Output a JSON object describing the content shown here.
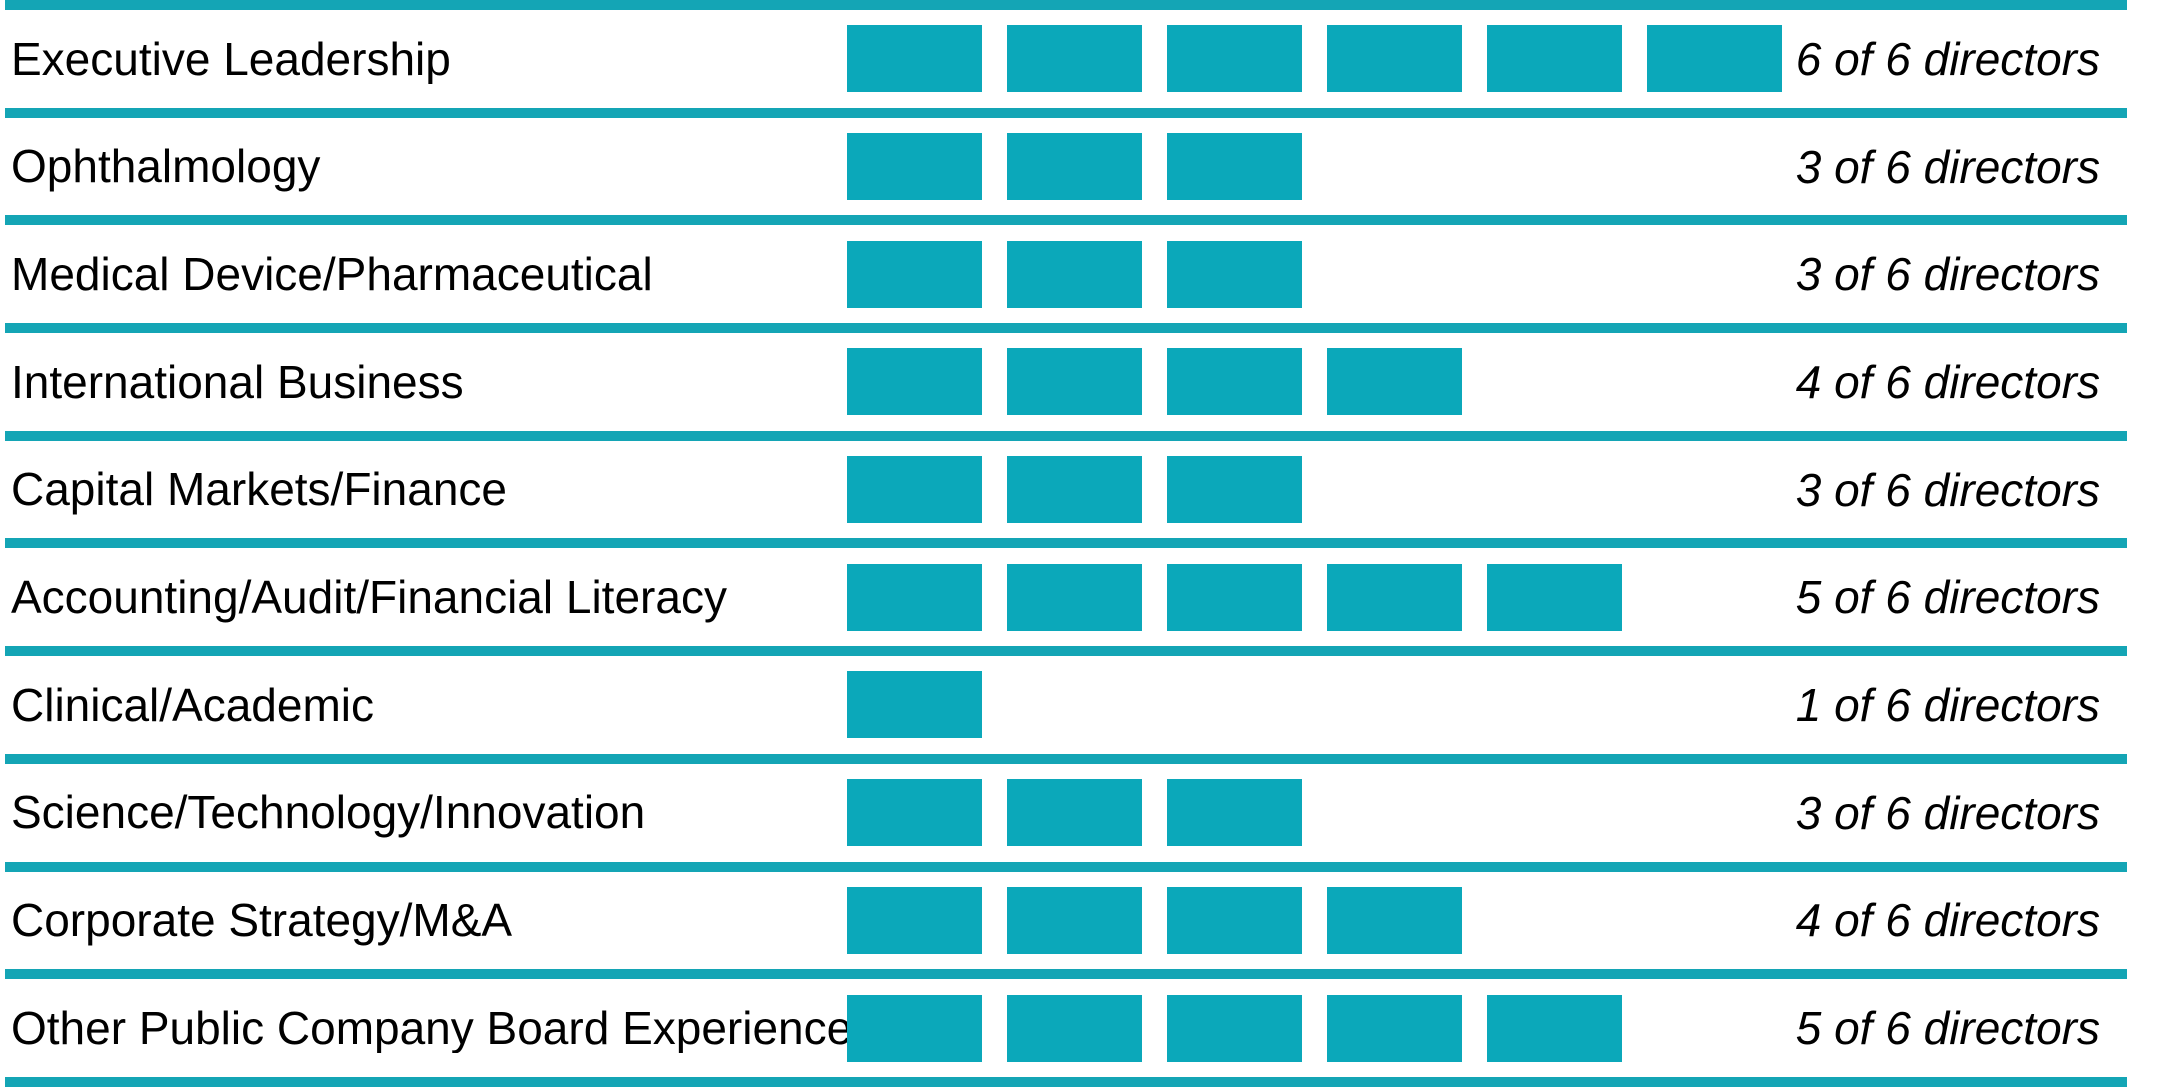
{
  "colors": {
    "block_teal": "#0ba8ba",
    "rule_teal": "#14a5b5",
    "text": "#000000",
    "background": "#ffffff"
  },
  "chart_data": {
    "type": "bar",
    "orientation": "horizontal",
    "title": "",
    "xlabel": "",
    "ylabel": "",
    "xlim": [
      0,
      6
    ],
    "legend": false,
    "grid": false,
    "bar_style": "unit-blocks",
    "total_directors": 6,
    "categories": [
      "Executive Leadership",
      "Ophthalmology",
      "Medical Device/Pharmaceutical",
      "International Business",
      "Capital Markets/Finance",
      "Accounting/Audit/Financial Literacy",
      "Clinical/Academic",
      "Science/Technology/Innovation",
      "Corporate Strategy/M&A",
      "Other Public Company Board Experience"
    ],
    "values": [
      6,
      3,
      3,
      4,
      3,
      5,
      1,
      3,
      4,
      5
    ],
    "value_labels": [
      "6 of 6 directors",
      "3 of 6 directors",
      "3 of 6 directors",
      "4 of 6 directors",
      "3 of 6 directors",
      "5 of 6 directors",
      "1 of 6 directors",
      "3 of 6 directors",
      "4 of 6 directors",
      "5 of 6 directors"
    ]
  },
  "rows": [
    {
      "label": "Executive Leadership",
      "count": 6,
      "count_label": "6 of 6 directors"
    },
    {
      "label": "Ophthalmology",
      "count": 3,
      "count_label": "3 of 6 directors"
    },
    {
      "label": "Medical Device/Pharmaceutical",
      "count": 3,
      "count_label": "3 of 6 directors"
    },
    {
      "label": "International Business",
      "count": 4,
      "count_label": "4 of 6 directors"
    },
    {
      "label": "Capital Markets/Finance",
      "count": 3,
      "count_label": "3 of 6 directors"
    },
    {
      "label": "Accounting/Audit/Financial Literacy",
      "count": 5,
      "count_label": "5 of 6 directors"
    },
    {
      "label": "Clinical/Academic",
      "count": 1,
      "count_label": "1 of 6 directors"
    },
    {
      "label": "Science/Technology/Innovation",
      "count": 3,
      "count_label": "3 of 6 directors"
    },
    {
      "label": "Corporate Strategy/M&A",
      "count": 4,
      "count_label": "4 of 6 directors"
    },
    {
      "label": "Other Public Company Board Experience",
      "count": 5,
      "count_label": "5 of 6 directors"
    }
  ]
}
